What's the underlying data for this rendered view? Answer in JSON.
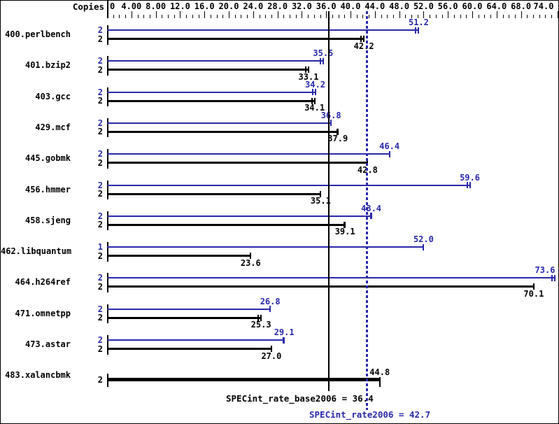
{
  "header": {
    "copies_label": "Copies"
  },
  "colors": {
    "peak_blue": "#2929aa",
    "base_black": "#000000",
    "background": "#ffffff"
  },
  "chart_data": {
    "type": "bar",
    "orientation": "horizontal",
    "title": "",
    "xlabel": "",
    "ylabel": "Copies",
    "x_axis": {
      "range": [
        0,
        74.5
      ],
      "minor_step": 1,
      "labels": [
        "0",
        "4.00",
        "8.00",
        "12.0",
        "16.0",
        "20.0",
        "24.0",
        "28.0",
        "32.0",
        "36.0",
        "40.0",
        "44.0",
        "48.0",
        "52.0",
        "56.0",
        "60.0",
        "64.0",
        "68.0",
        "74.0"
      ],
      "label_values": [
        0,
        4,
        8,
        12,
        16,
        20,
        24,
        28,
        32,
        36,
        40,
        44,
        48,
        52,
        56,
        60,
        64,
        68,
        74
      ]
    },
    "categories": [
      "400.perlbench",
      "401.bzip2",
      "403.gcc",
      "429.mcf",
      "445.gobmk",
      "456.hmmer",
      "458.sjeng",
      "462.libquantum",
      "464.h264ref",
      "471.omnetpp",
      "473.astar",
      "483.xalancbmk"
    ],
    "series": [
      {
        "name": "peak",
        "values": [
          51.2,
          35.5,
          34.2,
          36.8,
          46.4,
          59.6,
          43.4,
          52.0,
          73.6,
          26.8,
          29.1,
          null
        ]
      },
      {
        "name": "base",
        "values": [
          42.2,
          33.1,
          34.1,
          37.9,
          42.8,
          35.1,
          39.1,
          23.6,
          70.1,
          25.3,
          27.0,
          44.8
        ]
      }
    ],
    "rows": [
      {
        "benchmark": "400.perlbench",
        "bars": [
          {
            "series": "peak",
            "copies": "2",
            "value": 51.2,
            "display": "51.2",
            "end": "double"
          },
          {
            "series": "base",
            "copies": "2",
            "value": 42.2,
            "display": "42.2",
            "end": "double"
          }
        ]
      },
      {
        "benchmark": "401.bzip2",
        "bars": [
          {
            "series": "peak",
            "copies": "2",
            "value": 35.5,
            "display": "35.5",
            "end": "double"
          },
          {
            "series": "base",
            "copies": "2",
            "value": 33.1,
            "display": "33.1",
            "end": "double"
          }
        ]
      },
      {
        "benchmark": "403.gcc",
        "bars": [
          {
            "series": "peak",
            "copies": "2",
            "value": 34.2,
            "display": "34.2",
            "end": "double"
          },
          {
            "series": "base",
            "copies": "2",
            "value": 34.1,
            "display": "34.1",
            "end": "double"
          }
        ]
      },
      {
        "benchmark": "429.mcf",
        "bars": [
          {
            "series": "peak",
            "copies": "2",
            "value": 36.8,
            "display": "36.8",
            "end": "single"
          },
          {
            "series": "base",
            "copies": "2",
            "value": 37.9,
            "display": "37.9",
            "end": "bold"
          }
        ]
      },
      {
        "benchmark": "445.gobmk",
        "bars": [
          {
            "series": "peak",
            "copies": "2",
            "value": 46.4,
            "display": "46.4",
            "end": "single"
          },
          {
            "series": "base",
            "copies": "2",
            "value": 42.8,
            "display": "42.8",
            "end": "single"
          }
        ]
      },
      {
        "benchmark": "456.hmmer",
        "bars": [
          {
            "series": "peak",
            "copies": "2",
            "value": 59.6,
            "display": "59.6",
            "end": "double"
          },
          {
            "series": "base",
            "copies": "2",
            "value": 35.1,
            "display": "35.1",
            "end": "single"
          }
        ]
      },
      {
        "benchmark": "458.sjeng",
        "bars": [
          {
            "series": "peak",
            "copies": "2",
            "value": 43.4,
            "display": "43.4",
            "end": "bold"
          },
          {
            "series": "base",
            "copies": "2",
            "value": 39.1,
            "display": "39.1",
            "end": "bold"
          }
        ]
      },
      {
        "benchmark": "462.libquantum",
        "bars": [
          {
            "series": "peak",
            "copies": "1",
            "value": 52.0,
            "display": "52.0",
            "end": "single"
          },
          {
            "series": "base",
            "copies": "2",
            "value": 23.6,
            "display": "23.6",
            "end": "single"
          }
        ]
      },
      {
        "benchmark": "464.h264ref",
        "bars": [
          {
            "series": "peak",
            "copies": "2",
            "value": 73.6,
            "display": "73.6",
            "end": "double"
          },
          {
            "series": "base",
            "copies": "2",
            "value": 70.1,
            "display": "70.1",
            "end": "single"
          }
        ]
      },
      {
        "benchmark": "471.omnetpp",
        "bars": [
          {
            "series": "peak",
            "copies": "2",
            "value": 26.8,
            "display": "26.8",
            "end": "single"
          },
          {
            "series": "base",
            "copies": "2",
            "value": 25.3,
            "display": "25.3",
            "end": "double"
          }
        ]
      },
      {
        "benchmark": "473.astar",
        "bars": [
          {
            "series": "peak",
            "copies": "2",
            "value": 29.1,
            "display": "29.1",
            "end": "bold"
          },
          {
            "series": "base",
            "copies": "2",
            "value": 27.0,
            "display": "27.0",
            "end": "single"
          }
        ]
      },
      {
        "benchmark": "483.xalancbmk",
        "bars": [
          {
            "series": "base",
            "copies": "2",
            "value": 44.8,
            "display": "44.8",
            "end": "tall",
            "thick": true,
            "label_above": true
          }
        ]
      }
    ],
    "reference_lines": [
      {
        "series": "base",
        "value": 36.4,
        "style": "solid",
        "caption": "SPECint_rate_base2006 = 36.4"
      },
      {
        "series": "peak",
        "value": 42.7,
        "style": "dotted",
        "caption": "SPECint_rate2006 = 42.7"
      }
    ]
  }
}
